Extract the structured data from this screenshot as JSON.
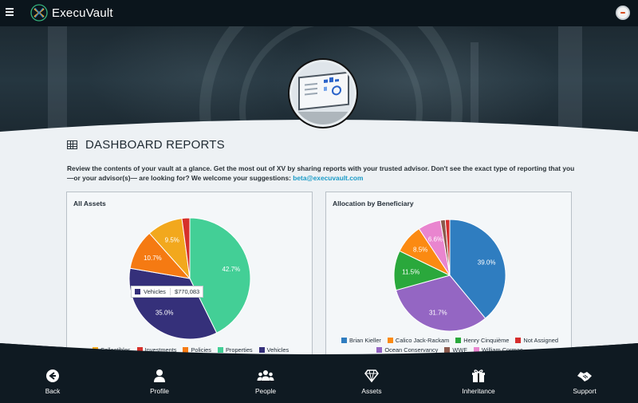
{
  "app": {
    "name": "ExecuVault"
  },
  "section": {
    "title": "DASHBOARD REPORTS",
    "intro": "Review the contents of your vault at a glance. Get the most out of XV by sharing reports with your trusted advisor. Don't see the exact type of reporting that you —or your advisor(s)— are looking for? We welcome your suggestions:",
    "email": "beta@execuvault.com"
  },
  "colors": {
    "collectibles": "#f2a81d",
    "investments": "#d6312b",
    "policies": "#f57a12",
    "properties": "#43cf96",
    "vehicles": "#35307a",
    "brian": "#2f7dc0",
    "calico": "#fb8a12",
    "henry": "#2aa83c",
    "notassigned": "#d62d2d",
    "ocean": "#9466c3",
    "wwf": "#8b5a4d",
    "william": "#e985cf"
  },
  "charts": [
    {
      "title": "All Assets",
      "tooltip": {
        "label": "Vehicles",
        "value": "$770,083"
      },
      "legend": [
        "Collectibles",
        "Investments",
        "Policies",
        "Properties",
        "Vehicles"
      ]
    },
    {
      "title": "Allocation by Beneficiary",
      "legend": [
        "Brian Kieller",
        "Calico Jack-Rackam",
        "Henry Cinquième",
        "Not Assigned",
        "Ocean Conservancy",
        "WWF",
        "William Cormac"
      ]
    }
  ],
  "chart_data": [
    {
      "type": "pie",
      "title": "All Assets",
      "slices": [
        {
          "name": "Properties",
          "value": 42.7,
          "label": "42.7%"
        },
        {
          "name": "Vehicles",
          "value": 35.0,
          "label": "35.0%"
        },
        {
          "name": "Policies",
          "value": 10.7,
          "label": "10.7%"
        },
        {
          "name": "Collectibles",
          "value": 9.5,
          "label": "9.5%"
        },
        {
          "name": "Investments",
          "value": 2.1,
          "label": ""
        }
      ],
      "legend_position": "bottom"
    },
    {
      "type": "pie",
      "title": "Allocation by Beneficiary",
      "slices": [
        {
          "name": "Brian Kieller",
          "value": 39.0,
          "label": "39.0%"
        },
        {
          "name": "Ocean Conservancy",
          "value": 31.7,
          "label": "31.7%"
        },
        {
          "name": "Henry Cinquième",
          "value": 11.5,
          "label": "11.5%"
        },
        {
          "name": "Calico Jack-Rackam",
          "value": 8.5,
          "label": "8.5%"
        },
        {
          "name": "William Cormac",
          "value": 6.6,
          "label": "6.6%"
        },
        {
          "name": "WWF",
          "value": 1.4,
          "label": ""
        },
        {
          "name": "Not Assigned",
          "value": 1.3,
          "label": ""
        }
      ],
      "legend_position": "bottom"
    }
  ],
  "nav": [
    {
      "label": "Back",
      "icon": "arrow-left-circle-icon"
    },
    {
      "label": "Profile",
      "icon": "person-icon"
    },
    {
      "label": "People",
      "icon": "people-icon"
    },
    {
      "label": "Assets",
      "icon": "diamond-icon"
    },
    {
      "label": "Inheritance",
      "icon": "gift-icon"
    },
    {
      "label": "Support",
      "icon": "handshake-icon"
    }
  ]
}
